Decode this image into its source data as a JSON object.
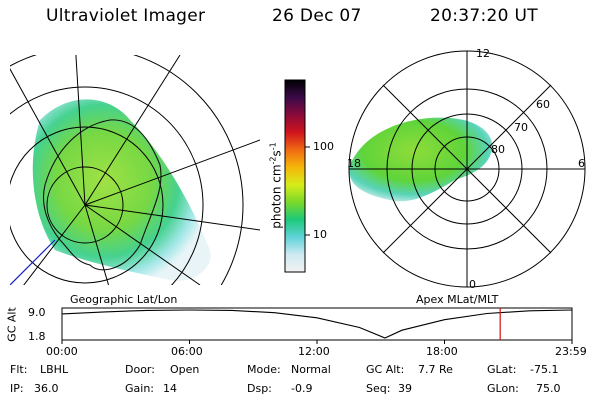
{
  "header": {
    "title": "Ultraviolet Imager",
    "date": "26 Dec 07",
    "time": "20:37:20 UT"
  },
  "maps": {
    "left_label": "Geographic Lat/Lon",
    "right_label": "Apex MLat/MLT",
    "right_lat_labels": [
      "60",
      "70",
      "80"
    ],
    "right_mlt_labels": [
      "12",
      "18",
      "6",
      "0"
    ]
  },
  "colorbar": {
    "label": "photon cm",
    "label_sup1": "-2",
    "label_mid": "s",
    "label_sup2": "-1",
    "ticks": [
      "100",
      "10"
    ],
    "scale": "log",
    "colors": [
      "#f2f2f2",
      "#cfe9f2",
      "#5fd3d8",
      "#1ec97a",
      "#7bd82a",
      "#d7ec1a",
      "#f5b60a",
      "#f06a14",
      "#d0141e",
      "#8a0a3a",
      "#3a0a4a",
      "#000000"
    ]
  },
  "chart_data": {
    "type": "line",
    "title": "",
    "ylabel": "GC Alt",
    "xlabel": "",
    "x_ticks": [
      "00:00",
      "06:00",
      "12:00",
      "18:00",
      "23:59"
    ],
    "y_ticks": [
      "9.0",
      "1.8"
    ],
    "ylim": [
      1.8,
      9.0
    ],
    "xlim_hours": [
      0,
      24
    ],
    "series": [
      {
        "x": [
          0,
          2,
          4,
          6,
          8,
          10,
          12,
          14,
          15.2,
          16,
          18,
          20,
          22,
          24
        ],
        "y": [
          8.0,
          8.5,
          8.9,
          9.0,
          8.9,
          8.3,
          7.0,
          4.5,
          1.8,
          3.8,
          6.5,
          8.1,
          8.8,
          9.0
        ]
      }
    ],
    "marker_time": "20:37",
    "marker_hours": 20.62,
    "marker_color": "#d01010"
  },
  "footer": {
    "rows": [
      [
        {
          "key": "Flt:",
          "val": "LBHL"
        },
        {
          "key": "Door:",
          "val": "Open"
        },
        {
          "key": "Mode:",
          "val": "Normal"
        },
        {
          "key": "GC Alt:",
          "val": "7.7 Re"
        },
        {
          "key": "GLat:",
          "val": "-75.1"
        }
      ],
      [
        {
          "key": "IP:",
          "val": "36.0"
        },
        {
          "key": "Gain:",
          "val": "14"
        },
        {
          "key": "Dsp:",
          "val": "-0.9"
        },
        {
          "key": "Seq:",
          "val": "39"
        },
        {
          "key": "GLon:",
          "val": "75.0"
        }
      ]
    ]
  }
}
